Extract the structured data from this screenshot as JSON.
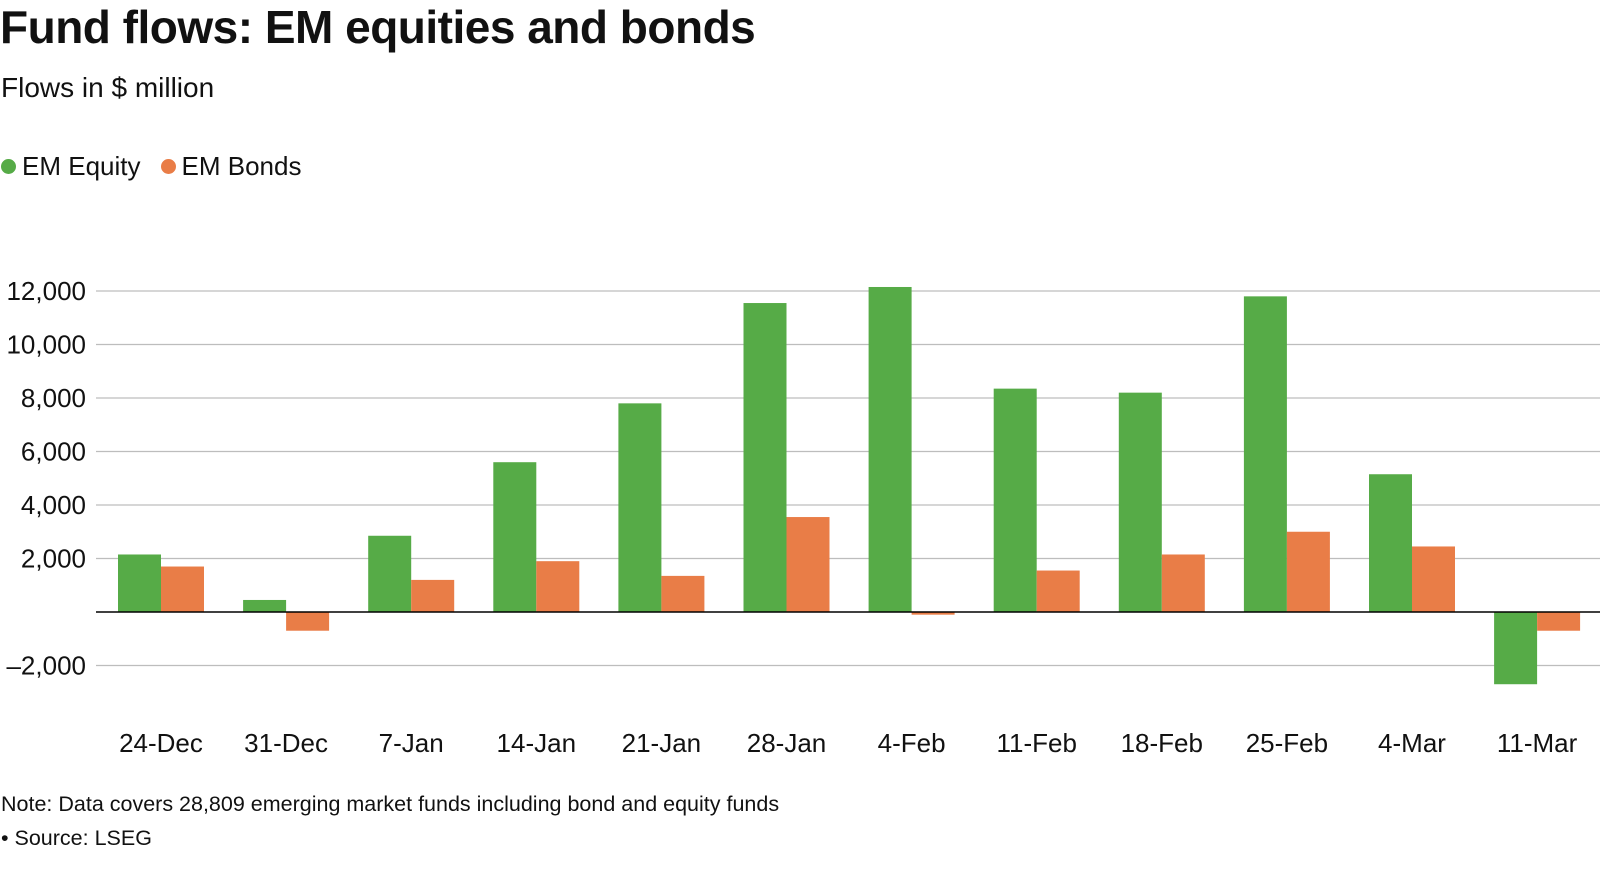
{
  "header": {
    "title": "Fund flows: EM equities and bonds",
    "subtitle": "Flows in $ million"
  },
  "footer": {
    "note": "Note: Data covers 28,809 emerging market funds including bond and equity funds",
    "source": "• Source: LSEG"
  },
  "colors": {
    "equity": "#56ab47",
    "bonds": "#e97d47",
    "grid": "#bdbdbd",
    "zero_line": "#000000"
  },
  "chart_data": {
    "type": "bar",
    "title": "Fund flows: EM equities and bonds",
    "subtitle": "Flows in $ million",
    "categories": [
      "24-Dec",
      "31-Dec",
      "7-Jan",
      "14-Jan",
      "21-Jan",
      "28-Jan",
      "4-Feb",
      "11-Feb",
      "18-Feb",
      "25-Feb",
      "4-Mar",
      "11-Mar"
    ],
    "series": [
      {
        "name": "EM Equity",
        "color": "#56ab47",
        "values": [
          2150,
          450,
          2850,
          5600,
          7800,
          11550,
          12150,
          8350,
          8200,
          11800,
          5150,
          -2700
        ]
      },
      {
        "name": "EM Bonds",
        "color": "#e97d47",
        "values": [
          1700,
          -700,
          1200,
          1900,
          1350,
          3550,
          -100,
          1550,
          2150,
          3000,
          2450,
          -700
        ]
      }
    ],
    "yticks": [
      12000,
      10000,
      8000,
      6000,
      4000,
      2000,
      -2000
    ],
    "ytick_labels": [
      "12,000",
      "10,000",
      "8,000",
      "6,000",
      "4,000",
      "2,000",
      "–2,000"
    ],
    "ylim": [
      -2700,
      12200
    ],
    "grid": true,
    "legend_position": "top-left",
    "xlabel": "",
    "ylabel": ""
  }
}
